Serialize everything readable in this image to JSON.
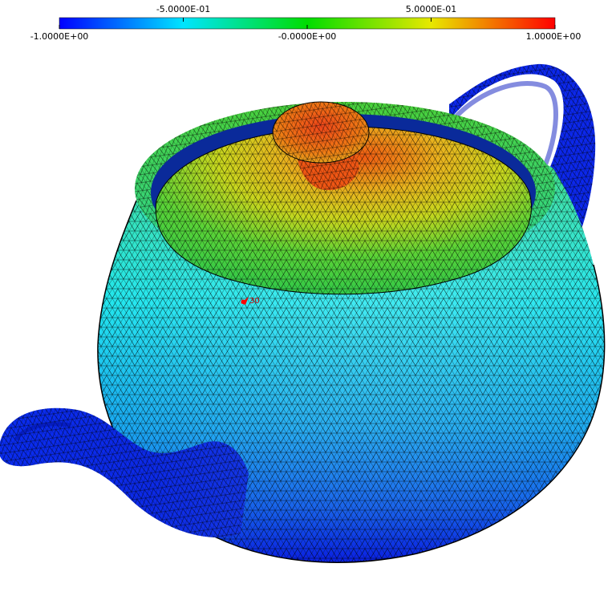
{
  "colorbar": {
    "stops": [
      "#0000ff",
      "#00e5ff",
      "#00dd00",
      "#e8e800",
      "#ff0000"
    ],
    "range": [
      -1.0,
      1.0
    ],
    "top_labels": [
      {
        "value": -0.5,
        "text": "-5.0000E-01"
      },
      {
        "value": 0.5,
        "text": "5.0000E-01"
      }
    ],
    "bottom_labels": [
      {
        "value": -1.0,
        "text": "-1.0000E+00"
      },
      {
        "value": 0.0,
        "text": "-0.0000E+00"
      },
      {
        "value": 1.0,
        "text": "1.0000E+00"
      }
    ]
  },
  "probe": {
    "label": "30",
    "color": "#ff0000"
  },
  "mesh": {
    "edge_color": "#000000",
    "colors": {
      "low": "#0a1ee6",
      "mid_low": "#1ed2f0",
      "mid": "#3cd246",
      "mid_high": "#e6d21e",
      "high": "#eb5a14"
    }
  }
}
